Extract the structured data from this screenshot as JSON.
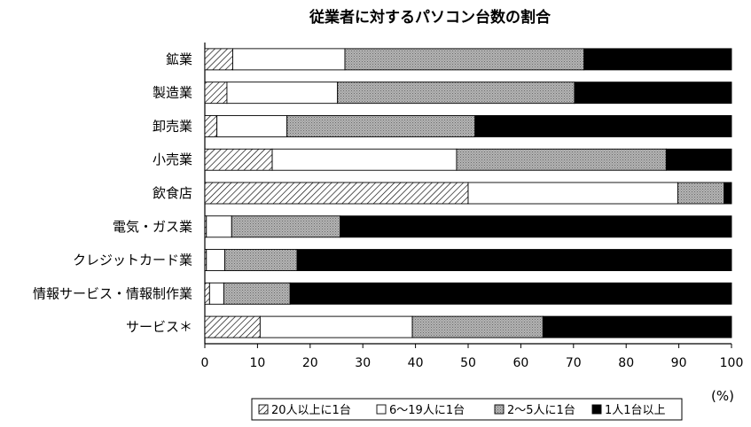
{
  "chart_data": {
    "type": "bar",
    "stacked": true,
    "orientation": "horizontal",
    "title": "従業者に対するパソコン台数の割合",
    "unit": "(%)",
    "xlim": [
      0,
      100
    ],
    "xticks": [
      "0",
      "10",
      "20",
      "30",
      "40",
      "50",
      "60",
      "70",
      "80",
      "90",
      "100"
    ],
    "grid": false,
    "legend_position": "bottom",
    "categories": [
      "鉱業",
      "製造業",
      "卸売業",
      "小売業",
      "飲食店",
      "電気・ガス業",
      "クレジットカード業",
      "情報サービス・情報制作業",
      "サービス＊"
    ],
    "series": [
      {
        "name": "20人以上に1台",
        "pattern": "hatch",
        "color": "#000000",
        "values": [
          5.3,
          4.2,
          2.3,
          12.8,
          50.0,
          0.3,
          0.3,
          0.9,
          10.5
        ]
      },
      {
        "name": "6～19人に1台",
        "pattern": "blank",
        "color": "#ffffff",
        "values": [
          21.3,
          21.0,
          13.3,
          35.0,
          39.8,
          4.8,
          3.5,
          2.7,
          28.9
        ]
      },
      {
        "name": "2～5人に1台",
        "pattern": "dots",
        "color": "#aaaaaa",
        "values": [
          45.4,
          45.0,
          35.7,
          39.8,
          8.8,
          20.6,
          13.7,
          12.6,
          24.8
        ]
      },
      {
        "name": "1人1台以上",
        "pattern": "solid",
        "color": "#000000",
        "values": [
          28.0,
          29.8,
          48.7,
          12.4,
          1.4,
          74.3,
          82.5,
          83.8,
          35.8
        ]
      }
    ]
  }
}
